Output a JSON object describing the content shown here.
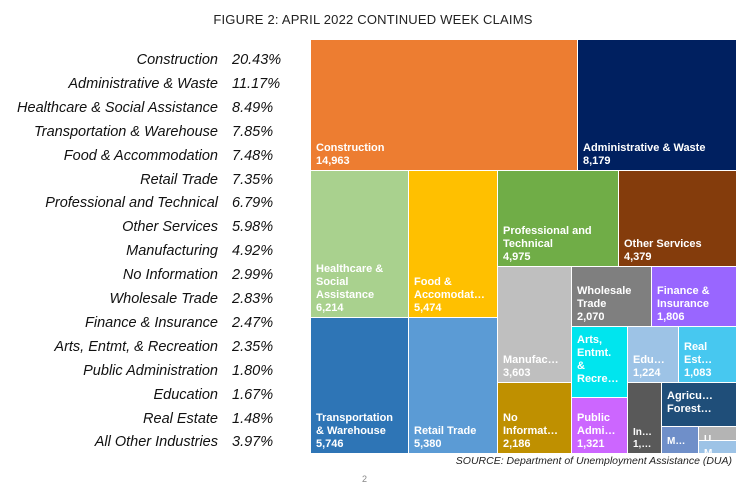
{
  "chart_data": {
    "type": "treemap",
    "title": "FIGURE 2: APRIL 2022 CONTINUED WEEK CLAIMS",
    "source": "SOURCE: Department of Unemployment Assistance (DUA)",
    "page_mark": "2",
    "legend": [
      {
        "name": "Construction",
        "pct": "20.43%"
      },
      {
        "name": "Administrative & Waste",
        "pct": "11.17%"
      },
      {
        "name": "Healthcare & Social Assistance",
        "pct": "8.49%"
      },
      {
        "name": "Transportation & Warehouse",
        "pct": "7.85%"
      },
      {
        "name": "Food & Accommodation",
        "pct": "7.48%"
      },
      {
        "name": "Retail Trade",
        "pct": "7.35%"
      },
      {
        "name": "Professional and Technical",
        "pct": "6.79%"
      },
      {
        "name": "Other Services",
        "pct": "5.98%"
      },
      {
        "name": "Manufacturing",
        "pct": "4.92%"
      },
      {
        "name": "No Information",
        "pct": "2.99%"
      },
      {
        "name": "Wholesale Trade",
        "pct": "2.83%"
      },
      {
        "name": "Finance & Insurance",
        "pct": "2.47%"
      },
      {
        "name": "Arts, Entmt, & Recreation",
        "pct": "2.35%"
      },
      {
        "name": "Public Administration",
        "pct": "1.80%"
      },
      {
        "name": "Education",
        "pct": "1.67%"
      },
      {
        "name": "Real Estate",
        "pct": "1.48%"
      },
      {
        "name": "All Other Industries",
        "pct": "3.97%"
      }
    ],
    "cells": [
      {
        "key": "construction",
        "label": [
          "Construction"
        ],
        "value": "14,963",
        "color": "#ed7d31"
      },
      {
        "key": "admin",
        "label": [
          "Administrative & Waste"
        ],
        "value": "8,179",
        "color": "#002060"
      },
      {
        "key": "health",
        "label": [
          "Healthcare &",
          "Social",
          "Assistance"
        ],
        "value": "6,214",
        "color": "#a9d18e"
      },
      {
        "key": "food",
        "label": [
          "Food &",
          "Accomodat…"
        ],
        "value": "5,474",
        "color": "#ffc000"
      },
      {
        "key": "prof",
        "label": [
          "Professional and",
          "Technical"
        ],
        "value": "4,975",
        "color": "#70ad47"
      },
      {
        "key": "other",
        "label": [
          "Other Services"
        ],
        "value": "4,379",
        "color": "#843c0c"
      },
      {
        "key": "transport",
        "label": [
          "Transportation",
          "& Warehouse"
        ],
        "value": "5,746",
        "color": "#2e75b6"
      },
      {
        "key": "retail",
        "label": [
          "Retail Trade"
        ],
        "value": "5,380",
        "color": "#5b9bd5"
      },
      {
        "key": "manuf",
        "label": [
          "Manufac…"
        ],
        "value": "3,603",
        "color": "#bfbfbf"
      },
      {
        "key": "noinfo",
        "label": [
          "No",
          "Informat…"
        ],
        "value": "2,186",
        "color": "#bf9000"
      },
      {
        "key": "wholesale",
        "label": [
          "Wholesale",
          "Trade"
        ],
        "value": "2,070",
        "color": "#7f7f7f"
      },
      {
        "key": "finance",
        "label": [
          "Finance &",
          "Insurance"
        ],
        "value": "1,806",
        "color": "#9966ff"
      },
      {
        "key": "arts",
        "label": [
          "Arts,",
          "Entmt.",
          "&",
          "Recre…"
        ],
        "value": "",
        "color": "#00e5ee"
      },
      {
        "key": "public",
        "label": [
          "Public",
          "Admi…"
        ],
        "value": "1,321",
        "color": "#cc66ff"
      },
      {
        "key": "edu",
        "label": [
          "Edu…"
        ],
        "value": "1,224",
        "color": "#9dc3e6"
      },
      {
        "key": "realestate",
        "label": [
          "Real",
          "Est…"
        ],
        "value": "1,083",
        "color": "#47c8f0"
      },
      {
        "key": "info",
        "label": [
          "In…"
        ],
        "value": "1,…",
        "color": "#595959"
      },
      {
        "key": "agri",
        "label": [
          "Agricu…",
          "Forest…"
        ],
        "value": "",
        "color": "#1f4e79"
      },
      {
        "key": "misc1",
        "label": [
          "M…"
        ],
        "value": "",
        "color": "#6f8fc9"
      },
      {
        "key": "misc2",
        "label": [
          "U…"
        ],
        "value": "",
        "color": "#b4b4b4"
      },
      {
        "key": "misc3",
        "label": [
          "M…"
        ],
        "value": "",
        "color": "#9dc3e6"
      }
    ]
  }
}
